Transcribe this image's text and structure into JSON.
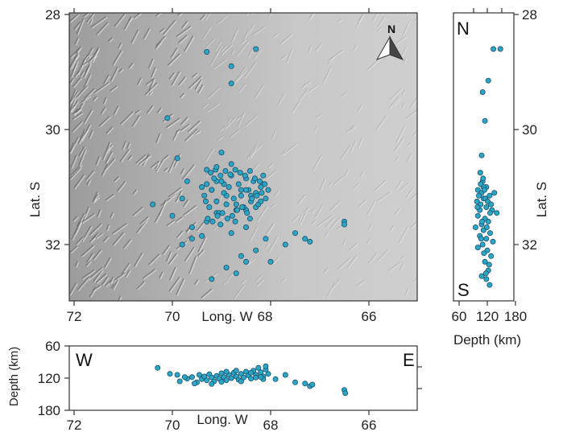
{
  "colors": {
    "event_fill": "#2aa6c9",
    "event_stroke": "#1f4f63",
    "relief_base": "#c9c9c9",
    "frame": "#333333"
  },
  "chart_data": [
    {
      "id": "map",
      "type": "scatter",
      "title": "",
      "xlabel": "Long. W",
      "ylabel": "Lat. S",
      "xlim": [
        72,
        65
      ],
      "ylim": [
        33.2,
        28
      ],
      "x_ticks": [
        "72",
        "70",
        "68",
        "66"
      ],
      "y_ticks": [
        "28",
        "30",
        "32"
      ],
      "y_ticks_right": [
        "28",
        "30",
        "32"
      ],
      "north_arrow_label": "N",
      "background": "shaded relief",
      "points_lon_lat": [
        [
          69.3,
          28.65
        ],
        [
          68.3,
          28.6
        ],
        [
          68.8,
          28.9
        ],
        [
          68.8,
          29.2
        ],
        [
          70.1,
          29.8
        ],
        [
          69.4,
          31.85
        ],
        [
          70.4,
          31.3
        ],
        [
          69.8,
          31.2
        ],
        [
          69.6,
          31.7
        ],
        [
          69.8,
          32.0
        ],
        [
          69.6,
          31.9
        ],
        [
          70.0,
          31.5
        ],
        [
          69.1,
          31.25
        ],
        [
          69.7,
          30.9
        ],
        [
          69.9,
          30.5
        ],
        [
          69.3,
          30.7
        ],
        [
          69.0,
          30.4
        ],
        [
          69.1,
          30.9
        ],
        [
          69.4,
          31.0
        ],
        [
          69.2,
          31.05
        ],
        [
          68.9,
          31.15
        ],
        [
          68.6,
          31.05
        ],
        [
          68.3,
          31.35
        ],
        [
          68.5,
          31.7
        ],
        [
          68.1,
          31.9
        ],
        [
          67.7,
          32.0
        ],
        [
          67.5,
          31.8
        ],
        [
          67.3,
          31.9
        ],
        [
          67.2,
          31.95
        ],
        [
          66.5,
          31.6
        ],
        [
          66.5,
          31.65
        ],
        [
          68.3,
          32.1
        ],
        [
          68.0,
          32.3
        ],
        [
          68.6,
          32.2
        ],
        [
          68.7,
          32.5
        ],
        [
          68.5,
          32.3
        ],
        [
          68.9,
          32.4
        ],
        [
          69.2,
          32.6
        ],
        [
          68.8,
          31.8
        ],
        [
          68.5,
          31.4
        ],
        [
          68.4,
          31.15
        ],
        [
          68.7,
          31.3
        ],
        [
          68.95,
          30.95
        ],
        [
          68.15,
          30.95
        ],
        [
          68.05,
          31.05
        ],
        [
          69.1,
          31.45
        ],
        [
          69.3,
          31.6
        ]
      ],
      "points_cluster_lon": [
        69.35,
        69.3,
        69.25,
        69.2,
        69.15,
        69.1,
        69.05,
        69.0,
        68.95,
        68.9,
        68.85,
        68.8,
        68.75,
        68.7,
        68.65,
        68.6,
        68.55,
        68.5,
        68.45,
        68.4,
        68.35,
        68.3,
        68.25,
        68.2,
        68.15,
        68.1,
        69.28,
        69.18,
        69.08,
        68.98,
        68.88,
        68.78,
        68.68,
        68.58,
        68.48,
        68.38,
        68.28,
        68.18,
        69.22,
        69.12,
        69.02,
        68.92,
        68.82,
        68.72,
        68.62,
        68.52,
        68.42,
        68.32,
        68.22,
        69.32,
        69.02,
        68.72,
        68.42,
        68.12,
        69.1,
        68.8,
        68.5,
        68.2
      ],
      "points_cluster_lat": [
        31.15,
        30.95,
        31.35,
        31.05,
        30.85,
        31.25,
        31.45,
        30.9,
        31.1,
        31.3,
        31.0,
        30.8,
        31.2,
        31.4,
        30.95,
        31.15,
        31.35,
        30.85,
        31.05,
        31.25,
        30.9,
        31.1,
        31.3,
        31.0,
        30.8,
        31.2,
        31.55,
        31.6,
        31.5,
        31.45,
        31.55,
        31.5,
        31.4,
        31.35,
        31.45,
        31.2,
        31.15,
        31.1,
        30.75,
        30.7,
        30.8,
        30.72,
        30.78,
        30.7,
        30.75,
        30.8,
        30.72,
        30.85,
        30.9,
        31.25,
        31.65,
        31.6,
        31.55,
        30.95,
        30.65,
        30.6,
        31.05,
        31.25
      ]
    },
    {
      "id": "depth_lat",
      "type": "scatter",
      "xlabel": "Depth (km)",
      "ylabel": "Lat. S",
      "xlim": [
        60,
        180
      ],
      "ylim": [
        33.2,
        28
      ],
      "x_ticks": [
        "60",
        "120",
        "180"
      ],
      "y_ticks": [
        "28",
        "30",
        "32"
      ],
      "corner_top": "N",
      "corner_bottom": "S",
      "points_depth_lat": [
        [
          133,
          28.6
        ],
        [
          148,
          28.6
        ],
        [
          122,
          29.15
        ],
        [
          110,
          29.35
        ],
        [
          115,
          29.85
        ],
        [
          108,
          30.45
        ],
        [
          105,
          30.75
        ],
        [
          110,
          30.9
        ],
        [
          118,
          31.0
        ],
        [
          100,
          31.05
        ],
        [
          108,
          31.1
        ],
        [
          125,
          31.15
        ],
        [
          112,
          31.2
        ],
        [
          98,
          31.25
        ],
        [
          106,
          31.3
        ],
        [
          118,
          31.35
        ],
        [
          130,
          31.4
        ],
        [
          140,
          31.45
        ],
        [
          100,
          31.5
        ],
        [
          115,
          31.55
        ],
        [
          122,
          31.6
        ],
        [
          108,
          31.65
        ],
        [
          95,
          31.7
        ],
        [
          112,
          31.75
        ],
        [
          126,
          31.8
        ],
        [
          104,
          31.85
        ],
        [
          118,
          31.9
        ],
        [
          132,
          31.95
        ],
        [
          110,
          32.0
        ],
        [
          100,
          32.05
        ],
        [
          120,
          32.1
        ],
        [
          128,
          32.2
        ],
        [
          115,
          32.3
        ],
        [
          122,
          32.45
        ],
        [
          108,
          32.55
        ],
        [
          118,
          32.6
        ],
        [
          125,
          32.7
        ],
        [
          112,
          31.0
        ],
        [
          116,
          31.2
        ],
        [
          104,
          31.4
        ],
        [
          109,
          31.6
        ],
        [
          121,
          31.25
        ],
        [
          135,
          31.1
        ],
        [
          102,
          31.15
        ],
        [
          114,
          31.05
        ],
        [
          126,
          31.45
        ],
        [
          119,
          31.7
        ],
        [
          107,
          31.9
        ],
        [
          113,
          32.15
        ],
        [
          124,
          32.35
        ],
        [
          117,
          32.5
        ],
        [
          111,
          30.85
        ],
        [
          106,
          30.95
        ],
        [
          128,
          31.3
        ],
        [
          99,
          31.35
        ]
      ]
    },
    {
      "id": "depth_lon",
      "type": "scatter",
      "xlabel": "Long. W",
      "ylabel": "Depth (km)",
      "xlim": [
        72,
        65
      ],
      "ylim": [
        180,
        60
      ],
      "x_ticks": [
        "72",
        "70",
        "68",
        "66"
      ],
      "y_ticks": [
        "60",
        "120",
        "180"
      ],
      "corner_left": "W",
      "corner_right": "E",
      "points_lon_depth": [
        [
          70.3,
          101
        ],
        [
          70.05,
          112
        ],
        [
          69.9,
          114
        ],
        [
          69.85,
          126
        ],
        [
          69.7,
          121
        ],
        [
          69.6,
          118
        ],
        [
          69.5,
          128
        ],
        [
          69.45,
          114
        ],
        [
          69.4,
          122
        ],
        [
          69.35,
          117
        ],
        [
          69.3,
          124
        ],
        [
          69.25,
          113
        ],
        [
          69.2,
          119
        ],
        [
          69.15,
          126
        ],
        [
          69.1,
          116
        ],
        [
          69.05,
          121
        ],
        [
          69.0,
          111
        ],
        [
          68.95,
          118
        ],
        [
          68.9,
          124
        ],
        [
          68.85,
          114
        ],
        [
          68.8,
          120
        ],
        [
          68.75,
          110
        ],
        [
          68.7,
          117
        ],
        [
          68.65,
          123
        ],
        [
          68.6,
          112
        ],
        [
          68.55,
          119
        ],
        [
          68.5,
          108
        ],
        [
          68.45,
          115
        ],
        [
          68.4,
          121
        ],
        [
          68.35,
          106
        ],
        [
          68.3,
          114
        ],
        [
          68.25,
          101
        ],
        [
          68.2,
          109
        ],
        [
          68.15,
          117
        ],
        [
          68.1,
          104
        ],
        [
          68.05,
          112
        ],
        [
          69.75,
          118
        ],
        [
          69.55,
          130
        ],
        [
          69.0,
          127
        ],
        [
          68.7,
          106
        ],
        [
          68.3,
          119
        ],
        [
          68.15,
          122
        ],
        [
          67.9,
          122
        ],
        [
          67.7,
          114
        ],
        [
          67.5,
          128
        ],
        [
          67.3,
          130
        ],
        [
          67.2,
          135
        ],
        [
          67.15,
          132
        ],
        [
          66.5,
          142
        ],
        [
          66.48,
          148
        ],
        [
          69.2,
          131
        ],
        [
          68.9,
          108
        ],
        [
          68.6,
          126
        ],
        [
          68.4,
          110
        ],
        [
          68.2,
          118
        ],
        [
          68.1,
          98
        ]
      ]
    }
  ]
}
